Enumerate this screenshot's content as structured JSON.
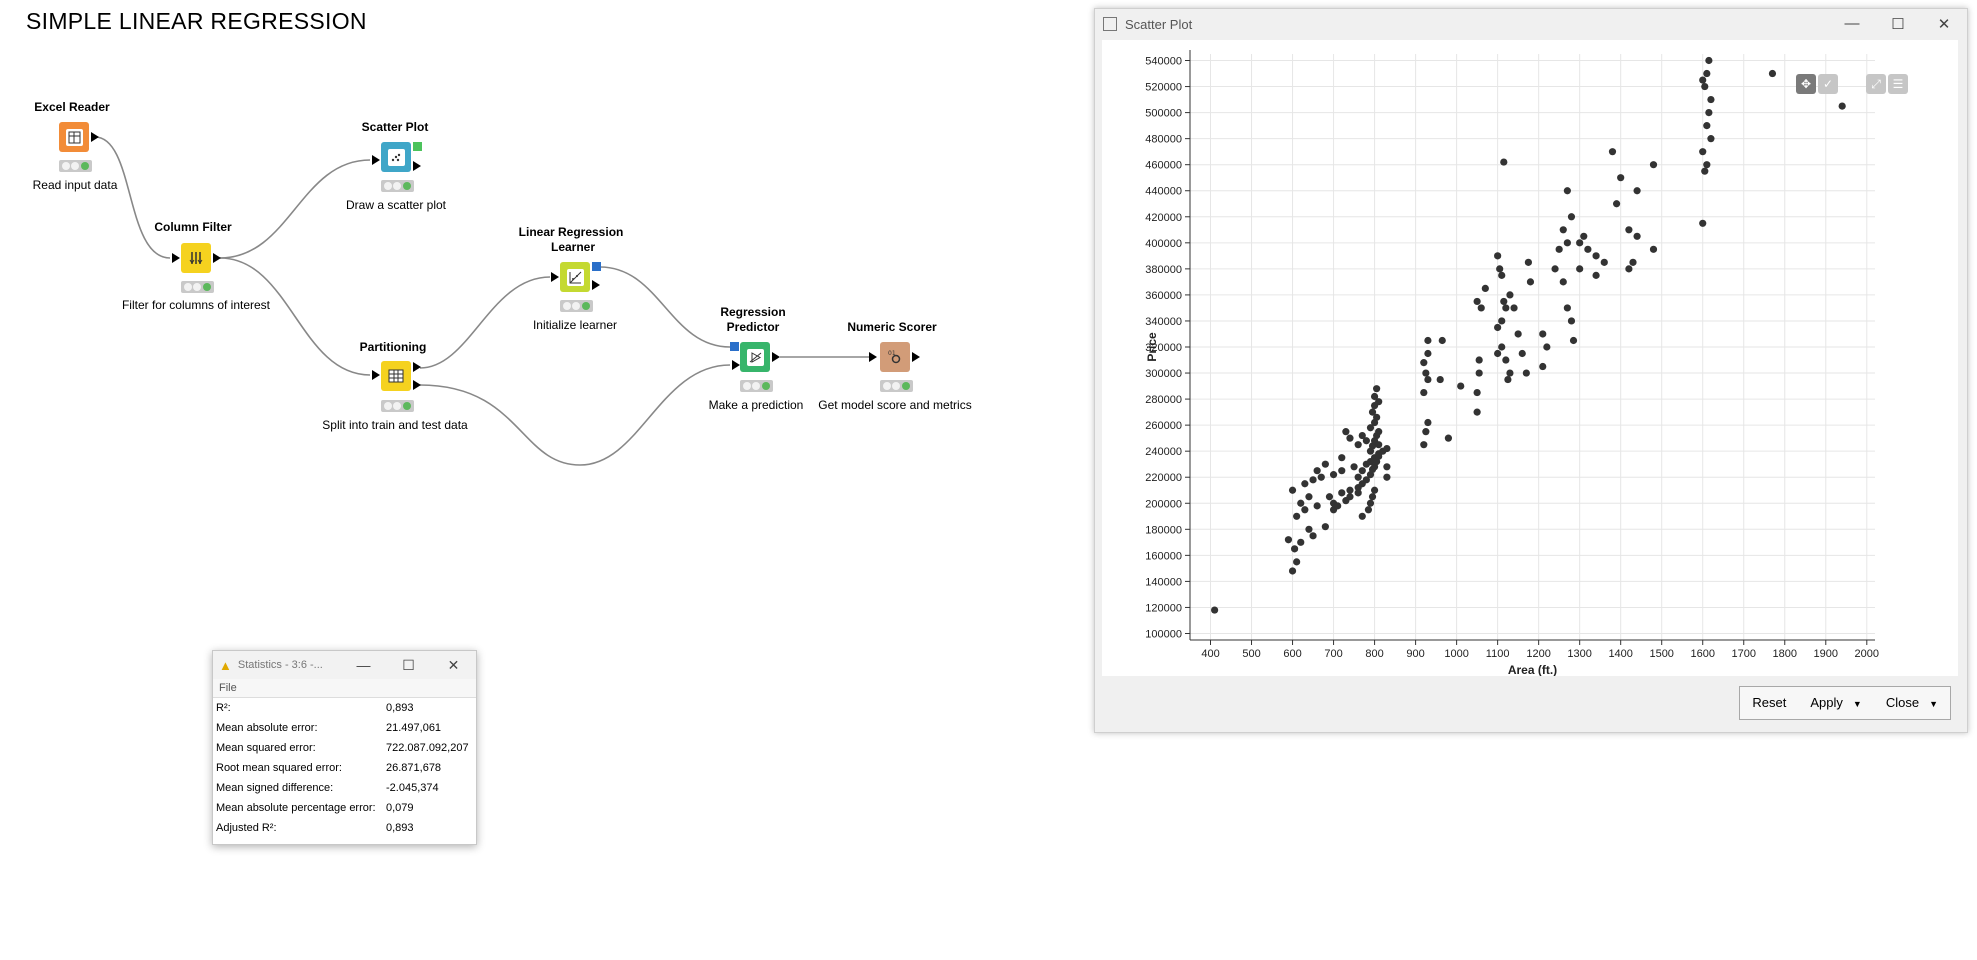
{
  "canvas": {
    "title": "SIMPLE LINEAR REGRESSION"
  },
  "nodes": {
    "excel_reader": {
      "name": "Excel Reader",
      "desc": "Read input data",
      "color": "#f28c38"
    },
    "column_filter": {
      "name": "Column Filter",
      "desc": "Filter for columns of interest",
      "color": "#f5d21f"
    },
    "scatter_plot": {
      "name": "Scatter Plot",
      "desc": "Draw a scatter plot",
      "color": "#3fa6c8"
    },
    "partitioning": {
      "name": "Partitioning",
      "desc": "Split into train and test data",
      "color": "#f5d21f"
    },
    "lr_learner": {
      "name_line1": "Linear Regression",
      "name_line2": "Learner",
      "desc": "Initialize learner",
      "color": "#c4d931"
    },
    "reg_predictor": {
      "name_line1": "Regression",
      "name_line2": "Predictor",
      "desc": "Make a prediction",
      "color": "#37b56b"
    },
    "numeric_scorer": {
      "name": "Numeric Scorer",
      "desc": "Get model score and metrics",
      "color": "#d29c78"
    }
  },
  "scatter_window": {
    "title": "Scatter Plot",
    "buttons": {
      "reset": "Reset",
      "apply": "Apply",
      "close": "Close"
    }
  },
  "chart_data": {
    "type": "scatter",
    "xlabel": "Area (ft.)",
    "ylabel": "Price",
    "xlim": [
      350,
      2020
    ],
    "ylim": [
      95000,
      545000
    ],
    "xticks": [
      400,
      500,
      600,
      700,
      800,
      900,
      1000,
      1100,
      1200,
      1300,
      1400,
      1500,
      1600,
      1700,
      1800,
      1900,
      2000
    ],
    "yticks": [
      100000,
      120000,
      140000,
      160000,
      180000,
      200000,
      220000,
      240000,
      260000,
      280000,
      300000,
      320000,
      340000,
      360000,
      380000,
      400000,
      420000,
      440000,
      460000,
      480000,
      500000,
      520000,
      540000
    ],
    "grid": true,
    "points": [
      [
        410,
        118000
      ],
      [
        600,
        148000
      ],
      [
        610,
        155000
      ],
      [
        605,
        165000
      ],
      [
        620,
        170000
      ],
      [
        590,
        172000
      ],
      [
        650,
        175000
      ],
      [
        640,
        180000
      ],
      [
        680,
        182000
      ],
      [
        610,
        190000
      ],
      [
        630,
        195000
      ],
      [
        660,
        198000
      ],
      [
        700,
        200000
      ],
      [
        690,
        205000
      ],
      [
        720,
        208000
      ],
      [
        740,
        210000
      ],
      [
        760,
        212000
      ],
      [
        600,
        210000
      ],
      [
        630,
        215000
      ],
      [
        650,
        218000
      ],
      [
        670,
        220000
      ],
      [
        700,
        222000
      ],
      [
        720,
        225000
      ],
      [
        750,
        228000
      ],
      [
        780,
        230000
      ],
      [
        790,
        232000
      ],
      [
        800,
        235000
      ],
      [
        810,
        238000
      ],
      [
        820,
        240000
      ],
      [
        830,
        242000
      ],
      [
        700,
        195000
      ],
      [
        710,
        198000
      ],
      [
        730,
        202000
      ],
      [
        740,
        205000
      ],
      [
        760,
        208000
      ],
      [
        770,
        215000
      ],
      [
        780,
        218000
      ],
      [
        790,
        222000
      ],
      [
        795,
        226000
      ],
      [
        800,
        228000
      ],
      [
        805,
        232000
      ],
      [
        810,
        236000
      ],
      [
        790,
        240000
      ],
      [
        795,
        244000
      ],
      [
        800,
        248000
      ],
      [
        805,
        252000
      ],
      [
        810,
        255000
      ],
      [
        790,
        258000
      ],
      [
        800,
        262000
      ],
      [
        805,
        266000
      ],
      [
        795,
        270000
      ],
      [
        800,
        275000
      ],
      [
        810,
        278000
      ],
      [
        800,
        282000
      ],
      [
        805,
        288000
      ],
      [
        790,
        200000
      ],
      [
        795,
        205000
      ],
      [
        800,
        210000
      ],
      [
        785,
        195000
      ],
      [
        770,
        190000
      ],
      [
        760,
        245000
      ],
      [
        740,
        250000
      ],
      [
        730,
        255000
      ],
      [
        720,
        235000
      ],
      [
        680,
        230000
      ],
      [
        660,
        225000
      ],
      [
        640,
        205000
      ],
      [
        620,
        200000
      ],
      [
        760,
        220000
      ],
      [
        770,
        225000
      ],
      [
        830,
        220000
      ],
      [
        830,
        228000
      ],
      [
        810,
        245000
      ],
      [
        780,
        248000
      ],
      [
        770,
        252000
      ],
      [
        920,
        245000
      ],
      [
        925,
        255000
      ],
      [
        930,
        262000
      ],
      [
        920,
        285000
      ],
      [
        930,
        295000
      ],
      [
        925,
        300000
      ],
      [
        920,
        308000
      ],
      [
        930,
        315000
      ],
      [
        930,
        325000
      ],
      [
        960,
        295000
      ],
      [
        965,
        325000
      ],
      [
        980,
        250000
      ],
      [
        1010,
        290000
      ],
      [
        1050,
        270000
      ],
      [
        1050,
        285000
      ],
      [
        1055,
        300000
      ],
      [
        1055,
        310000
      ],
      [
        1060,
        350000
      ],
      [
        1050,
        355000
      ],
      [
        1070,
        365000
      ],
      [
        1100,
        315000
      ],
      [
        1110,
        320000
      ],
      [
        1120,
        310000
      ],
      [
        1125,
        295000
      ],
      [
        1130,
        300000
      ],
      [
        1100,
        335000
      ],
      [
        1110,
        340000
      ],
      [
        1120,
        350000
      ],
      [
        1115,
        355000
      ],
      [
        1130,
        360000
      ],
      [
        1105,
        380000
      ],
      [
        1100,
        390000
      ],
      [
        1110,
        375000
      ],
      [
        1140,
        350000
      ],
      [
        1150,
        330000
      ],
      [
        1160,
        315000
      ],
      [
        1170,
        300000
      ],
      [
        1180,
        370000
      ],
      [
        1175,
        385000
      ],
      [
        1210,
        305000
      ],
      [
        1210,
        330000
      ],
      [
        1220,
        320000
      ],
      [
        1240,
        380000
      ],
      [
        1250,
        395000
      ],
      [
        1260,
        410000
      ],
      [
        1270,
        440000
      ],
      [
        1280,
        420000
      ],
      [
        1270,
        400000
      ],
      [
        1260,
        370000
      ],
      [
        1270,
        350000
      ],
      [
        1280,
        340000
      ],
      [
        1285,
        325000
      ],
      [
        1300,
        380000
      ],
      [
        1300,
        400000
      ],
      [
        1310,
        405000
      ],
      [
        1320,
        395000
      ],
      [
        1340,
        390000
      ],
      [
        1340,
        375000
      ],
      [
        1360,
        385000
      ],
      [
        1380,
        470000
      ],
      [
        1390,
        430000
      ],
      [
        1400,
        450000
      ],
      [
        1420,
        380000
      ],
      [
        1420,
        410000
      ],
      [
        1430,
        385000
      ],
      [
        1440,
        405000
      ],
      [
        1440,
        440000
      ],
      [
        1480,
        460000
      ],
      [
        1480,
        395000
      ],
      [
        1115,
        462000
      ],
      [
        1600,
        415000
      ],
      [
        1600,
        470000
      ],
      [
        1605,
        455000
      ],
      [
        1610,
        460000
      ],
      [
        1620,
        480000
      ],
      [
        1610,
        490000
      ],
      [
        1615,
        500000
      ],
      [
        1620,
        510000
      ],
      [
        1605,
        520000
      ],
      [
        1600,
        525000
      ],
      [
        1610,
        530000
      ],
      [
        1615,
        540000
      ],
      [
        1770,
        530000
      ],
      [
        1940,
        505000
      ]
    ]
  },
  "stats_window": {
    "title": "Statistics - 3:6 -...",
    "menu": "File",
    "rows": [
      {
        "label": "R²:",
        "value": "0,893"
      },
      {
        "label": "Mean absolute error:",
        "value": "21.497,061"
      },
      {
        "label": "Mean squared error:",
        "value": "722.087.092,207"
      },
      {
        "label": "Root mean squared error:",
        "value": "26.871,678"
      },
      {
        "label": "Mean signed difference:",
        "value": "-2.045,374"
      },
      {
        "label": "Mean absolute percentage error:",
        "value": "0,079"
      },
      {
        "label": "Adjusted R²:",
        "value": "0,893"
      }
    ]
  }
}
